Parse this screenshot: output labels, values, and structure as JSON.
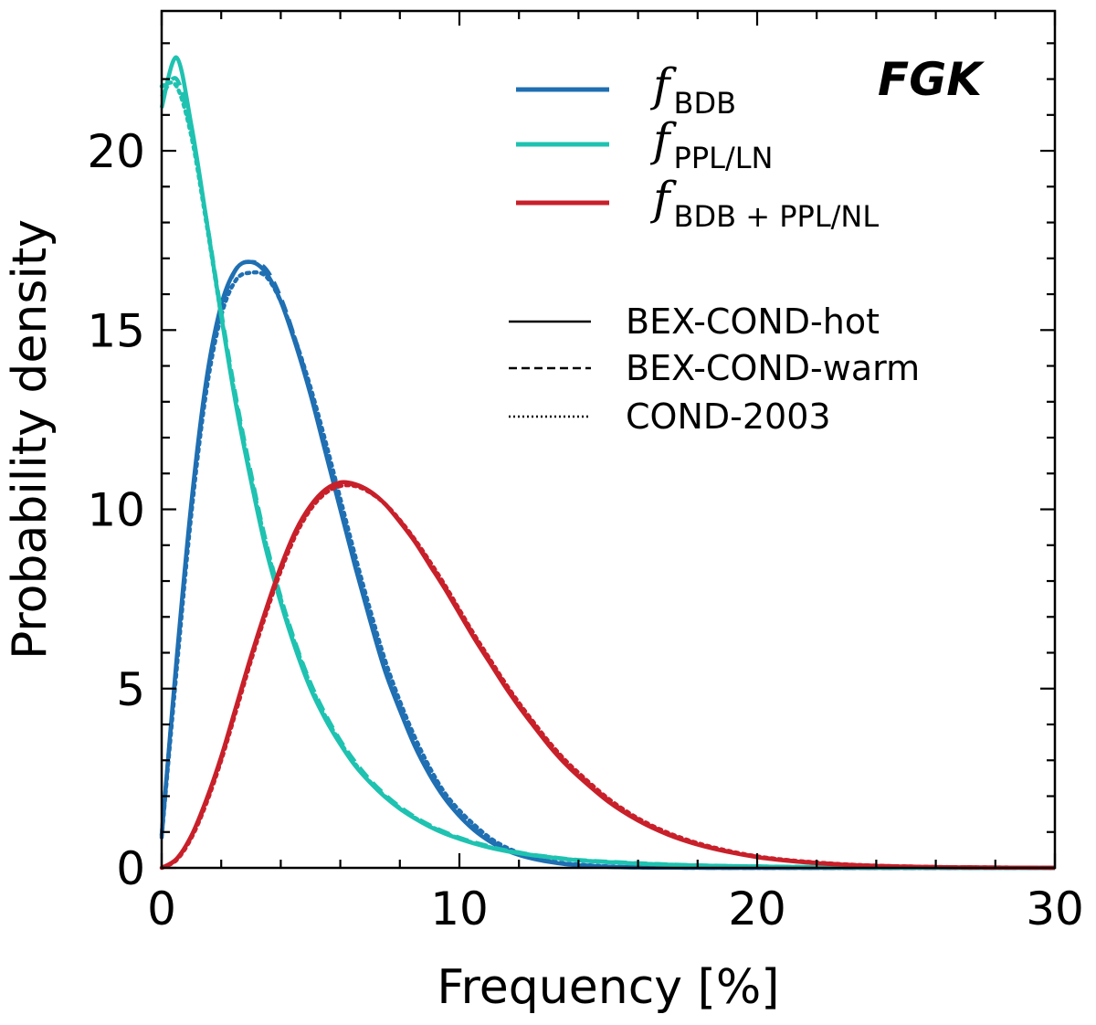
{
  "chart_data": {
    "type": "line",
    "title": "",
    "panel_label": "FGK",
    "xlabel": "Frequency [%]",
    "ylabel": "Probability density",
    "xlim": [
      0,
      30
    ],
    "ylim": [
      0,
      23.9
    ],
    "x_ticks": [
      0,
      10,
      20,
      30
    ],
    "y_ticks": [
      0,
      5,
      10,
      15,
      20
    ],
    "x_minor_step": 2,
    "y_minor_step": 1,
    "grid": false,
    "legend_position": "top-right",
    "x": [
      0,
      0.5,
      1,
      1.5,
      2,
      2.5,
      3,
      3.5,
      4,
      4.5,
      5,
      5.5,
      6,
      6.5,
      7,
      7.5,
      8,
      8.5,
      9,
      9.5,
      10,
      10.5,
      11,
      11.5,
      12,
      12.5,
      13,
      13.5,
      14,
      15,
      16,
      17,
      18,
      19,
      20,
      21,
      22,
      23,
      24,
      25,
      26,
      27,
      28,
      29,
      30
    ],
    "series": [
      {
        "name_main": "f",
        "name_sub": "BDB",
        "color": "#1f6fb2",
        "models": [
          {
            "model": "BEX-COND-hot",
            "values": [
              0.9,
              5.8,
              10.2,
              13.6,
              15.7,
              16.7,
              16.9,
              16.6,
              15.8,
              14.6,
              13.2,
              11.6,
              10.0,
              8.4,
              6.9,
              5.5,
              4.4,
              3.4,
              2.6,
              1.95,
              1.45,
              1.05,
              0.75,
              0.52,
              0.36,
              0.25,
              0.17,
              0.11,
              0.07,
              0.03,
              0.012,
              0.005,
              0.002,
              0.001,
              0,
              0,
              0,
              0,
              0,
              0,
              0,
              0,
              0,
              0,
              0
            ]
          },
          {
            "model": "BEX-COND-warm",
            "values": [
              0.9,
              5.7,
              10.1,
              13.5,
              15.6,
              16.7,
              16.9,
              16.7,
              15.9,
              14.7,
              13.3,
              11.7,
              10.1,
              8.5,
              7.0,
              5.6,
              4.5,
              3.5,
              2.7,
              2.0,
              1.5,
              1.1,
              0.78,
              0.55,
              0.38,
              0.26,
              0.18,
              0.12,
              0.08,
              0.035,
              0.014,
              0.006,
              0.002,
              0.001,
              0,
              0,
              0,
              0,
              0,
              0,
              0,
              0,
              0,
              0,
              0
            ]
          },
          {
            "model": "COND-2003",
            "values": [
              0.85,
              5.5,
              9.9,
              13.3,
              15.4,
              16.4,
              16.6,
              16.5,
              15.8,
              14.7,
              13.4,
              11.9,
              10.3,
              8.7,
              7.2,
              5.8,
              4.65,
              3.65,
              2.8,
              2.1,
              1.6,
              1.2,
              0.85,
              0.6,
              0.42,
              0.29,
              0.2,
              0.13,
              0.09,
              0.04,
              0.016,
              0.007,
              0.003,
              0.001,
              0,
              0,
              0,
              0,
              0,
              0,
              0,
              0,
              0,
              0,
              0
            ]
          }
        ]
      },
      {
        "name_main": "f",
        "name_sub": "PPL/LN",
        "color": "#1fc2b0",
        "models": [
          {
            "model": "BEX-COND-hot",
            "values": [
              21.2,
              22.6,
              20.7,
              18.1,
              15.4,
              12.9,
              10.8,
              8.9,
              7.4,
              6.1,
              5.0,
              4.15,
              3.45,
              2.85,
              2.38,
              1.98,
              1.65,
              1.38,
              1.15,
              0.96,
              0.81,
              0.68,
              0.57,
              0.48,
              0.41,
              0.35,
              0.3,
              0.25,
              0.21,
              0.16,
              0.12,
              0.09,
              0.065,
              0.05,
              0.038,
              0.028,
              0.02,
              0.015,
              0.011,
              0.008,
              0.006,
              0.004,
              0.003,
              0.002,
              0.001
            ]
          },
          {
            "model": "BEX-COND-warm",
            "values": [
              21.5,
              22.0,
              20.5,
              18.1,
              15.5,
              13.1,
              11.0,
              9.1,
              7.55,
              6.25,
              5.15,
              4.28,
              3.55,
              2.95,
              2.45,
              2.04,
              1.7,
              1.42,
              1.19,
              1.0,
              0.84,
              0.71,
              0.6,
              0.5,
              0.43,
              0.36,
              0.31,
              0.26,
              0.22,
              0.17,
              0.13,
              0.095,
              0.07,
              0.052,
              0.04,
              0.03,
              0.022,
              0.016,
              0.012,
              0.009,
              0.006,
              0.004,
              0.003,
              0.002,
              0.001
            ]
          },
          {
            "model": "COND-2003",
            "values": [
              21.8,
              21.8,
              20.4,
              18.0,
              15.4,
              13.0,
              10.9,
              9.05,
              7.5,
              6.2,
              5.1,
              4.22,
              3.5,
              2.9,
              2.4,
              2.0,
              1.67,
              1.4,
              1.17,
              0.98,
              0.82,
              0.69,
              0.58,
              0.49,
              0.42,
              0.35,
              0.3,
              0.25,
              0.21,
              0.16,
              0.12,
              0.09,
              0.065,
              0.05,
              0.038,
              0.028,
              0.02,
              0.015,
              0.011,
              0.008,
              0.006,
              0.004,
              0.003,
              0.002,
              0.001
            ]
          }
        ]
      },
      {
        "name_main": "f",
        "name_sub": "BDB + PPL/NL",
        "color": "#c8202a",
        "models": [
          {
            "model": "BEX-COND-hot",
            "values": [
              0,
              0.25,
              0.9,
              1.9,
              3.1,
              4.5,
              5.9,
              7.2,
              8.4,
              9.4,
              10.1,
              10.55,
              10.75,
              10.7,
              10.5,
              10.15,
              9.65,
              9.1,
              8.45,
              7.8,
              7.1,
              6.4,
              5.75,
              5.1,
              4.5,
              3.95,
              3.42,
              2.95,
              2.55,
              1.85,
              1.32,
              0.93,
              0.65,
              0.45,
              0.3,
              0.2,
              0.13,
              0.085,
              0.055,
              0.035,
              0.022,
              0.014,
              0.009,
              0.005,
              0.003
            ]
          },
          {
            "model": "BEX-COND-warm",
            "values": [
              0,
              0.24,
              0.88,
              1.85,
              3.05,
              4.45,
              5.85,
              7.15,
              8.35,
              9.35,
              10.05,
              10.5,
              10.7,
              10.68,
              10.48,
              10.15,
              9.68,
              9.13,
              8.5,
              7.85,
              7.15,
              6.45,
              5.8,
              5.15,
              4.55,
              4.0,
              3.47,
              3.0,
              2.6,
              1.89,
              1.35,
              0.95,
              0.67,
              0.46,
              0.31,
              0.21,
              0.14,
              0.09,
              0.058,
              0.037,
              0.023,
              0.015,
              0.009,
              0.006,
              0.003
            ]
          },
          {
            "model": "COND-2003",
            "values": [
              0,
              0.22,
              0.84,
              1.8,
              3.0,
              4.38,
              5.78,
              7.08,
              8.28,
              9.28,
              10.0,
              10.45,
              10.65,
              10.65,
              10.47,
              10.15,
              9.7,
              9.16,
              8.55,
              7.9,
              7.2,
              6.5,
              5.85,
              5.2,
              4.6,
              4.05,
              3.52,
              3.05,
              2.65,
              1.93,
              1.38,
              0.98,
              0.69,
              0.48,
              0.32,
              0.22,
              0.15,
              0.095,
              0.06,
              0.039,
              0.025,
              0.016,
              0.01,
              0.006,
              0.004
            ]
          }
        ]
      }
    ],
    "line_styles": [
      {
        "model": "BEX-COND-hot",
        "label": "BEX-COND-hot",
        "dash": "solid"
      },
      {
        "model": "BEX-COND-warm",
        "label": "BEX-COND-warm",
        "dash": "dashed"
      },
      {
        "model": "COND-2003",
        "label": "COND-2003",
        "dash": "dotted"
      }
    ]
  }
}
